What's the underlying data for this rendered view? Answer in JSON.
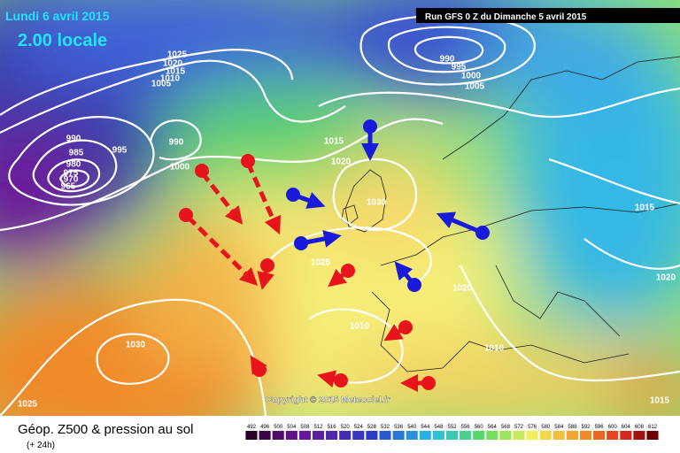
{
  "header": {
    "date": "Lundi 6 avril 2015",
    "time": "2.00 locale",
    "run": "Run GFS 0 Z du Dimanche 5 avril 2015"
  },
  "copyright": "Copyright © 2015 Meteociel.fr",
  "footer": {
    "title": "Géop. Z500 & pression au sol",
    "subtitle": "(+ 24h)"
  },
  "isobar_labels": [
    1025,
    1020,
    1015,
    1010,
    1005,
    990,
    985,
    980,
    975,
    970,
    965,
    990,
    995,
    1000,
    1015,
    1020,
    990,
    995,
    1000,
    1005,
    1030,
    1025,
    1030,
    1025,
    1010,
    1010,
    1015,
    1020,
    1020,
    1015
  ],
  "legend": {
    "scale": [
      492,
      496,
      500,
      504,
      508,
      512,
      516,
      520,
      524,
      528,
      532,
      536,
      540,
      544,
      548,
      552,
      556,
      560,
      564,
      568,
      572,
      576,
      580,
      584,
      588,
      592,
      596,
      600,
      604,
      608,
      612
    ]
  }
}
